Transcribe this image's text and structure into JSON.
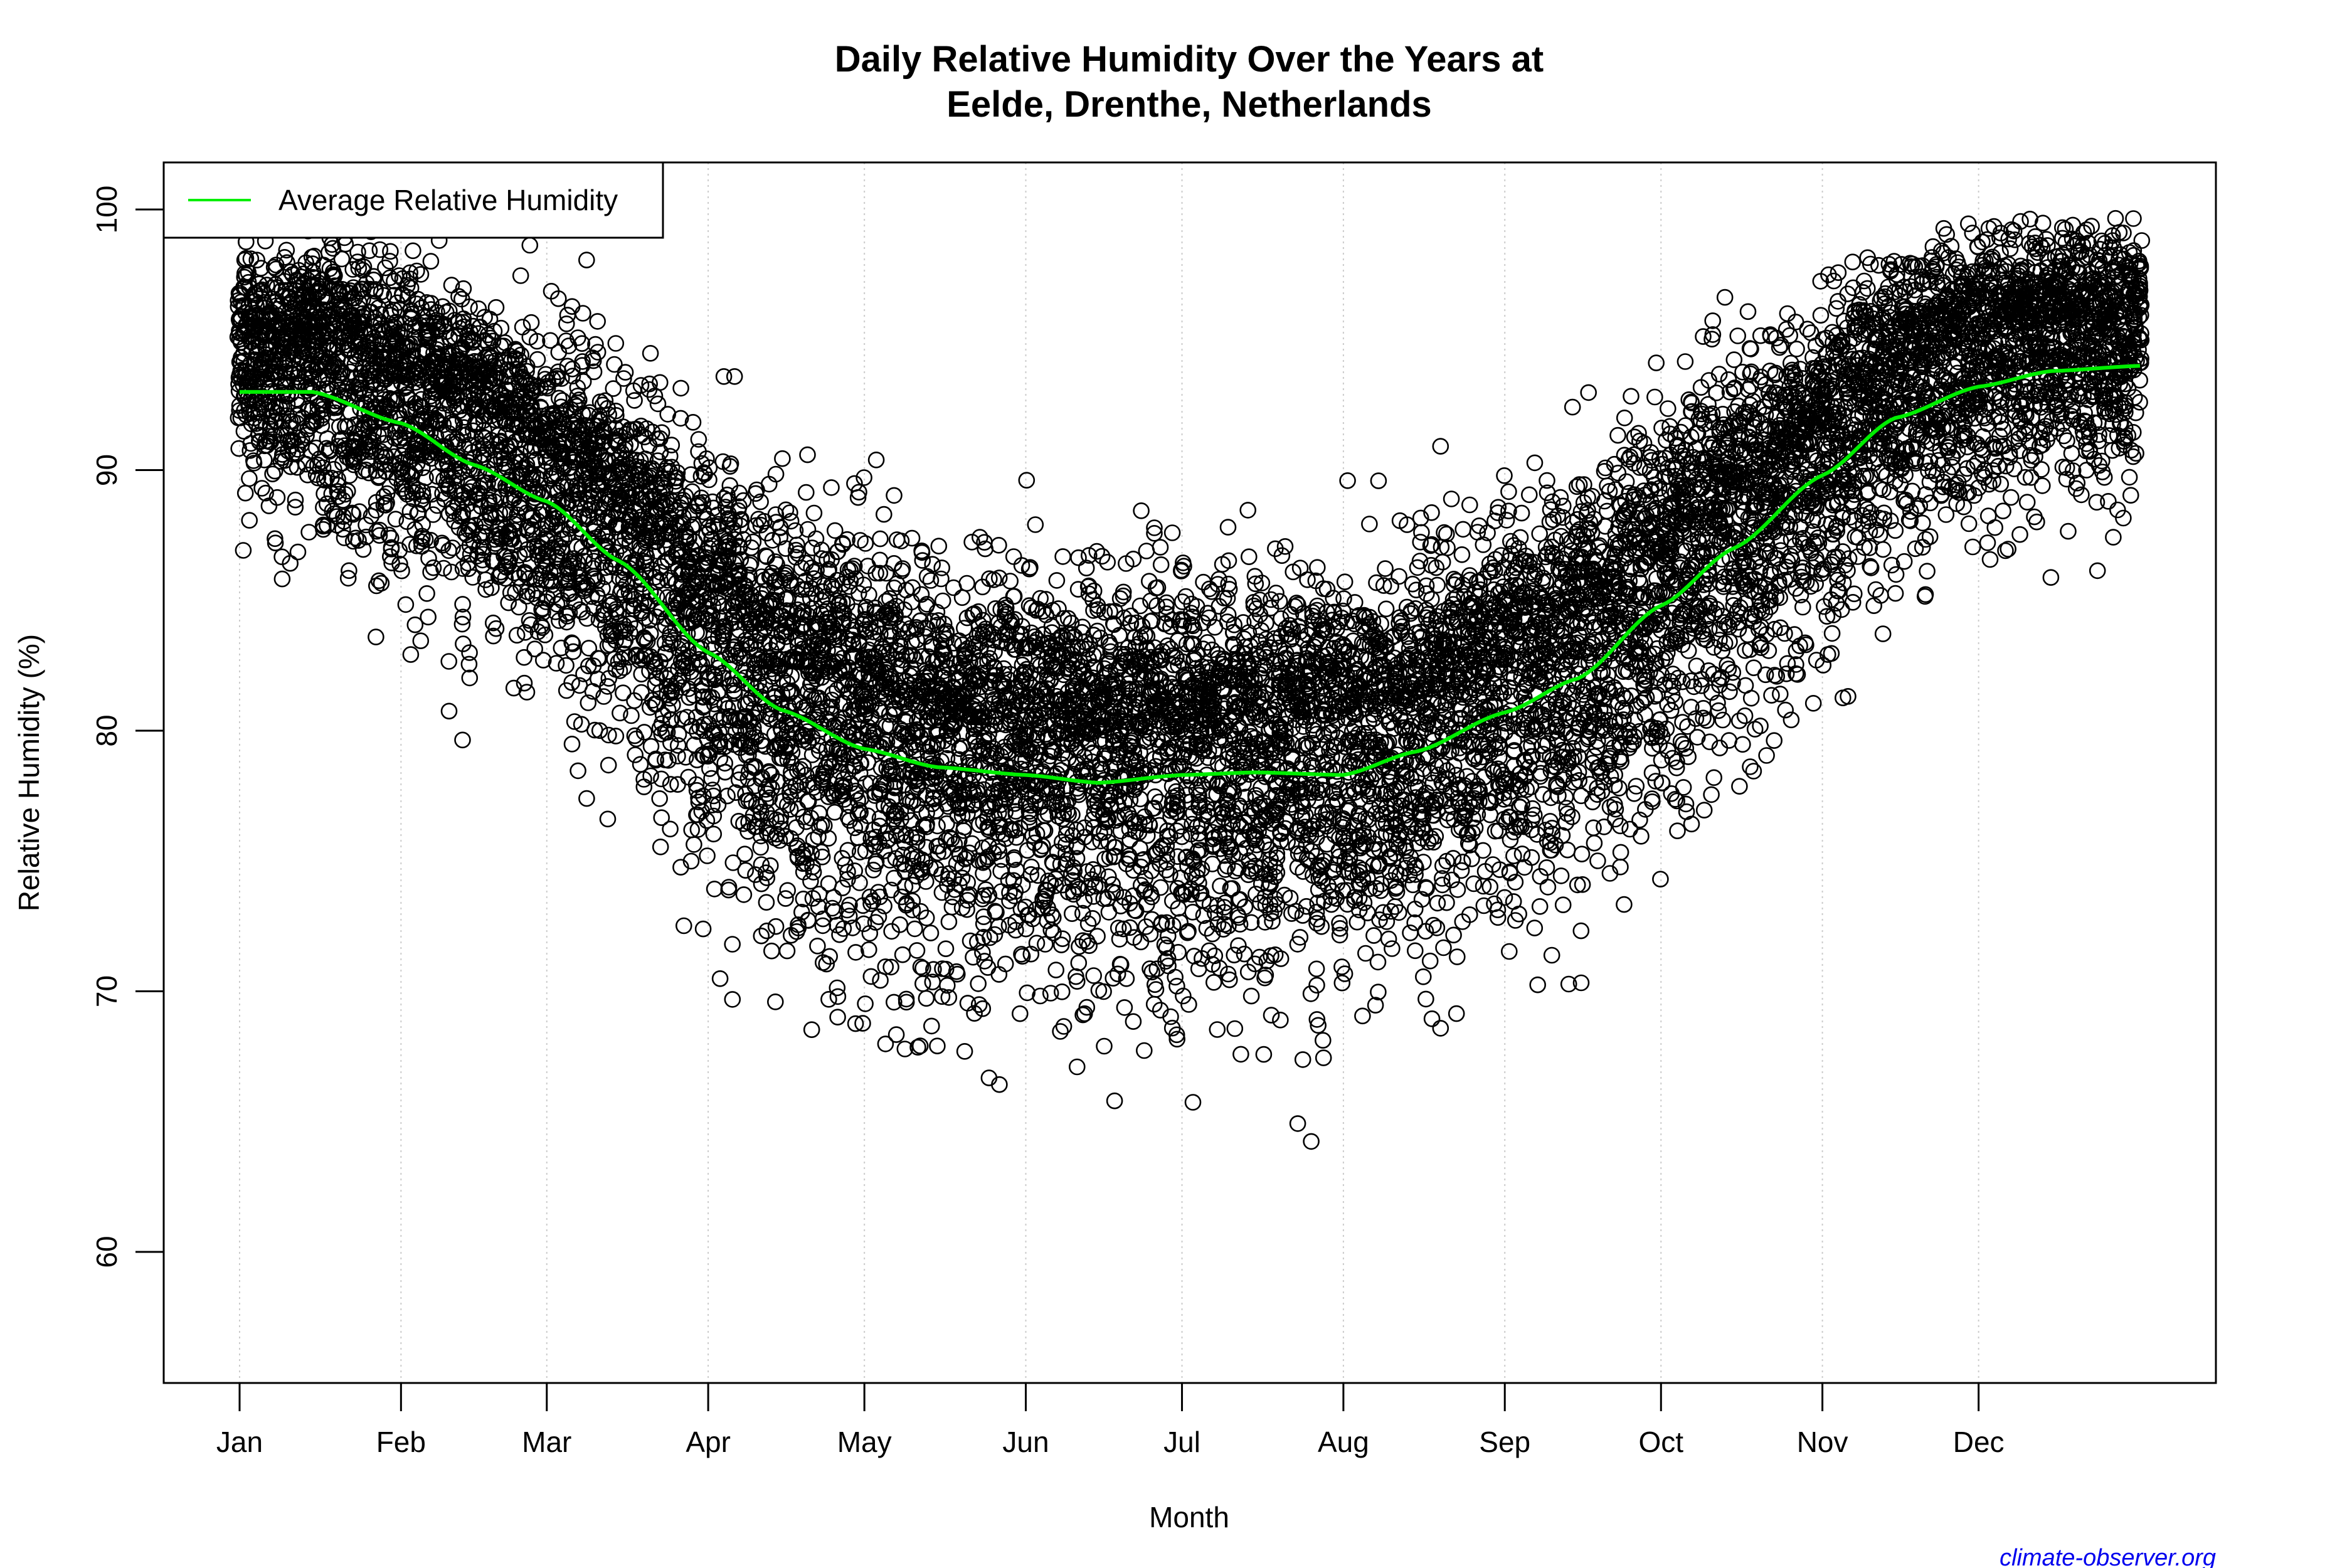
{
  "chart_data": {
    "type": "scatter",
    "title": "Daily Relative Humidity Over the Years at\nEelde, Drenthe, Netherlands",
    "title_lines": [
      "Daily Relative Humidity Over the Years at",
      "Eelde, Drenthe, Netherlands"
    ],
    "xlabel": "Month",
    "ylabel": "Relative Humidity  (%)",
    "ylim": [
      55,
      101.5
    ],
    "y_ticks": [
      60,
      70,
      80,
      90,
      100
    ],
    "x_ticks": [
      "Jan",
      "Feb",
      "Mar",
      "Apr",
      "May",
      "Jun",
      "Jul",
      "Aug",
      "Sep",
      "Oct",
      "Nov",
      "Dec"
    ],
    "x_tick_days": [
      1,
      32,
      60,
      91,
      121,
      152,
      182,
      213,
      244,
      274,
      305,
      335
    ],
    "x_range_days": [
      1,
      366
    ],
    "grid": "vertical dotted at month starts",
    "legend": {
      "position": "topleft",
      "entries": [
        {
          "label": "Average Relative Humidity",
          "color": "#00ee00"
        }
      ]
    },
    "series": [
      {
        "name": "Daily observations",
        "kind": "points",
        "marker": "open circle",
        "color": "#000000",
        "description": "Dense multi-year daily values; spread roughly 85-100 in winter, 60-92 in summer; extremes ~56.5-100"
      },
      {
        "name": "Average Relative Humidity",
        "kind": "line",
        "color": "#00ee00",
        "x_day": [
          1,
          15,
          32,
          46,
          60,
          74,
          91,
          105,
          121,
          135,
          152,
          166,
          182,
          196,
          213,
          227,
          244,
          258,
          274,
          288,
          305,
          319,
          335,
          349,
          366
        ],
        "values": [
          93.0,
          93.0,
          91.8,
          90.2,
          88.8,
          86.5,
          83.0,
          80.8,
          79.3,
          78.6,
          78.3,
          78.0,
          78.3,
          78.4,
          78.3,
          79.2,
          80.7,
          82.0,
          84.8,
          87.0,
          89.8,
          92.0,
          93.2,
          93.8,
          94.0
        ]
      }
    ],
    "scatter_envelope": {
      "x_day": [
        1,
        32,
        60,
        91,
        121,
        152,
        182,
        213,
        244,
        274,
        305,
        335,
        366
      ],
      "spread_sd": [
        3.3,
        4.2,
        5.0,
        5.6,
        5.8,
        5.6,
        5.6,
        5.8,
        5.4,
        5.2,
        4.6,
        3.6,
        3.3
      ],
      "points_per_day": 32
    }
  },
  "credit": "climate-observer.org"
}
